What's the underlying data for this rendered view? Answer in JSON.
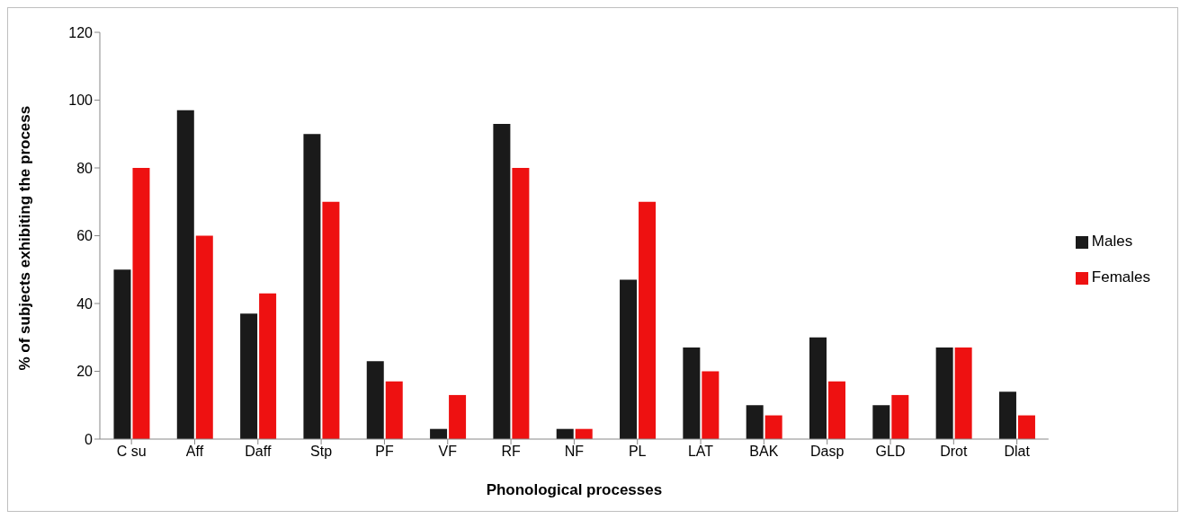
{
  "chart_data": {
    "type": "bar",
    "xlabel": "Phonological processes",
    "ylabel": "% of subjects exhibiting the process",
    "categories": [
      "C su",
      "Aff",
      "Daff",
      "Stp",
      "PF",
      "VF",
      "RF",
      "NF",
      "PL",
      "LAT",
      "BAK",
      "Dasp",
      "GLD",
      "Drot",
      "Dlat"
    ],
    "series": [
      {
        "name": "Males",
        "color": "#1a1a1a",
        "values": [
          50,
          97,
          37,
          90,
          23,
          3,
          93,
          3,
          47,
          27,
          10,
          30,
          10,
          27,
          14
        ]
      },
      {
        "name": "Females",
        "color": "#ee1111",
        "values": [
          80,
          60,
          43,
          70,
          17,
          13,
          80,
          3,
          70,
          20,
          7,
          17,
          13,
          27,
          7
        ]
      }
    ],
    "ylim": [
      0,
      120
    ],
    "yticks": [
      0,
      20,
      40,
      60,
      80,
      100,
      120
    ],
    "grid": false,
    "legend": "right"
  }
}
